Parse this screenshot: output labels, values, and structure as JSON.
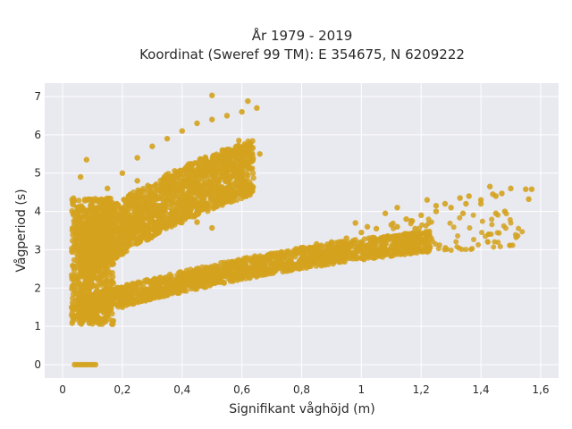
{
  "chart_data": {
    "type": "scatter",
    "title": "År 1979 - 2019",
    "subtitle": "Koordinat (Sweref 99 TM): E 354675, N 6209222",
    "xlabel": "Signifikant våghöjd (m)",
    "ylabel": "Vågperiod (s)",
    "xlim": [
      -0.06,
      1.66
    ],
    "ylim": [
      -0.35,
      7.35
    ],
    "x_ticks": [
      0,
      0.2,
      0.4,
      0.6,
      0.8,
      1,
      1.2,
      1.4,
      1.6
    ],
    "x_tick_labels": [
      "0",
      "0,2",
      "0,4",
      "0,6",
      "0,8",
      "1",
      "1,2",
      "1,4",
      "1,6"
    ],
    "y_ticks": [
      0,
      1,
      2,
      3,
      4,
      5,
      6,
      7
    ],
    "y_tick_labels": [
      "0",
      "1",
      "2",
      "3",
      "4",
      "5",
      "6",
      "7"
    ],
    "grid": true,
    "background": "#e9e9f0",
    "point_color": "#d4a21d",
    "series": [
      {
        "values": [
          [
            0.04,
            0.0
          ],
          [
            0.05,
            0.0
          ],
          [
            0.06,
            0.0
          ],
          [
            0.07,
            0.0
          ],
          [
            0.08,
            0.0
          ],
          [
            0.09,
            0.0
          ],
          [
            0.1,
            0.0
          ],
          [
            0.11,
            0.0
          ],
          [
            0.03,
            1.5
          ],
          [
            0.05,
            1.3
          ],
          [
            0.07,
            1.15
          ],
          [
            0.09,
            1.1
          ],
          [
            0.12,
            1.2
          ],
          [
            0.15,
            1.35
          ],
          [
            0.2,
            1.5
          ],
          [
            0.25,
            1.65
          ],
          [
            0.3,
            1.8
          ],
          [
            0.35,
            1.95
          ],
          [
            0.4,
            2.1
          ],
          [
            0.45,
            2.2
          ],
          [
            0.5,
            2.3
          ],
          [
            0.55,
            2.45
          ],
          [
            0.6,
            2.55
          ],
          [
            0.65,
            2.7
          ],
          [
            0.7,
            2.85
          ],
          [
            0.75,
            2.95
          ],
          [
            0.8,
            3.05
          ],
          [
            0.85,
            3.15
          ],
          [
            0.9,
            3.2
          ],
          [
            0.95,
            3.3
          ],
          [
            1.0,
            3.45
          ],
          [
            1.05,
            3.55
          ],
          [
            1.1,
            3.65
          ],
          [
            1.15,
            3.8
          ],
          [
            1.2,
            3.9
          ],
          [
            1.25,
            4.0
          ],
          [
            1.3,
            4.1
          ],
          [
            1.35,
            4.2
          ],
          [
            1.4,
            4.3
          ],
          [
            1.45,
            4.4
          ],
          [
            0.05,
            3.0
          ],
          [
            0.08,
            3.5
          ],
          [
            0.1,
            4.0
          ],
          [
            0.12,
            4.3
          ],
          [
            0.15,
            4.6
          ],
          [
            0.2,
            5.0
          ],
          [
            0.25,
            5.4
          ],
          [
            0.3,
            5.7
          ],
          [
            0.35,
            5.9
          ],
          [
            0.4,
            6.1
          ],
          [
            0.45,
            6.3
          ],
          [
            0.5,
            6.4
          ],
          [
            0.55,
            6.5
          ],
          [
            0.6,
            6.6
          ],
          [
            0.65,
            6.7
          ],
          [
            0.5,
            7.03
          ],
          [
            0.62,
            6.88
          ],
          [
            0.66,
            5.5
          ],
          [
            0.59,
            5.85
          ],
          [
            0.45,
            3.72
          ],
          [
            0.5,
            3.57
          ],
          [
            0.33,
            4.15
          ],
          [
            0.36,
            3.65
          ],
          [
            0.25,
            4.8
          ],
          [
            0.2,
            3.6
          ],
          [
            0.08,
            5.35
          ],
          [
            0.06,
            4.9
          ],
          [
            0.05,
            4.0
          ],
          [
            0.12,
            2.2
          ],
          [
            0.98,
            3.7
          ],
          [
            1.02,
            3.6
          ],
          [
            1.08,
            3.95
          ],
          [
            1.12,
            4.1
          ],
          [
            1.17,
            3.75
          ],
          [
            1.22,
            4.3
          ],
          [
            1.25,
            4.15
          ],
          [
            1.28,
            4.2
          ],
          [
            1.33,
            4.35
          ],
          [
            1.36,
            4.4
          ],
          [
            1.4,
            4.2
          ],
          [
            1.44,
            4.45
          ],
          [
            1.47,
            4.47
          ],
          [
            1.5,
            4.6
          ],
          [
            1.55,
            4.58
          ],
          [
            1.57,
            4.58
          ],
          [
            1.56,
            4.32
          ],
          [
            1.48,
            4.0
          ],
          [
            1.45,
            3.95
          ],
          [
            1.43,
            4.65
          ],
          [
            1.34,
            3.95
          ],
          [
            1.18,
            3.55
          ],
          [
            1.12,
            3.6
          ],
          [
            1.0,
            3.2
          ],
          [
            0.9,
            3.05
          ],
          [
            0.8,
            2.9
          ],
          [
            0.7,
            2.65
          ],
          [
            0.6,
            2.45
          ],
          [
            0.52,
            2.3
          ],
          [
            0.45,
            2.1
          ],
          [
            0.38,
            1.95
          ],
          [
            0.3,
            1.75
          ],
          [
            0.22,
            1.6
          ],
          [
            0.15,
            1.45
          ]
        ]
      }
    ]
  }
}
